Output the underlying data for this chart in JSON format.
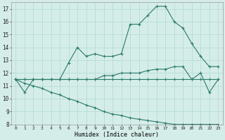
{
  "xlabel": "Humidex (Indice chaleur)",
  "x": [
    0,
    1,
    2,
    3,
    4,
    5,
    6,
    7,
    8,
    9,
    10,
    11,
    12,
    13,
    14,
    15,
    16,
    17,
    18,
    19,
    20,
    21,
    22,
    23
  ],
  "line1": [
    11.5,
    10.5,
    11.5,
    11.5,
    11.5,
    11.5,
    12.8,
    14.0,
    13.3,
    13.5,
    13.3,
    13.3,
    13.5,
    15.8,
    15.8,
    16.5,
    17.2,
    17.2,
    16.0,
    15.5,
    14.3,
    13.3,
    12.5,
    12.5
  ],
  "line2": [
    11.5,
    11.5,
    11.5,
    11.5,
    11.5,
    11.5,
    11.5,
    11.5,
    11.5,
    11.5,
    11.8,
    11.8,
    12.0,
    12.0,
    12.0,
    12.2,
    12.3,
    12.3,
    12.5,
    12.5,
    11.5,
    12.0,
    10.5,
    11.5
  ],
  "line3": [
    11.5,
    11.5,
    11.5,
    11.5,
    11.5,
    11.5,
    11.5,
    11.5,
    11.5,
    11.5,
    11.5,
    11.5,
    11.5,
    11.5,
    11.5,
    11.5,
    11.5,
    11.5,
    11.5,
    11.5,
    11.5,
    11.5,
    11.5,
    11.5
  ],
  "line4": [
    11.5,
    11.2,
    11.0,
    10.8,
    10.5,
    10.3,
    10.0,
    9.8,
    9.5,
    9.3,
    9.0,
    8.8,
    8.7,
    8.5,
    8.4,
    8.3,
    8.2,
    8.1,
    8.0,
    8.0,
    8.0,
    8.0,
    8.0,
    8.0
  ],
  "ylim": [
    8,
    17.5
  ],
  "yticks": [
    8,
    9,
    10,
    11,
    12,
    13,
    14,
    15,
    16,
    17
  ],
  "line_color": "#2a7a6a",
  "bg_color": "#d5ede8",
  "grid_color": "#afd8d0"
}
